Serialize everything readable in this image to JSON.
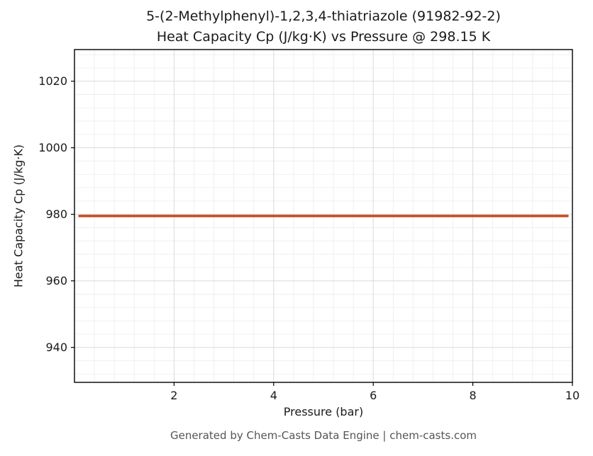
{
  "figure": {
    "title_line1": "5-(2-Methylphenyl)-1,2,3,4-thiatriazole (91982-92-2)",
    "title_line2": "Heat Capacity Cp (J/kg·K) vs Pressure @ 298.15 K",
    "footer": "Generated by Chem-Casts Data Engine | chem-casts.com"
  },
  "chart_data": {
    "type": "line",
    "title": "5-(2-Methylphenyl)-1,2,3,4-thiatriazole (91982-92-2)",
    "subtitle": "Heat Capacity Cp (J/kg·K) vs Pressure @ 298.15 K",
    "xlabel": "Pressure (bar)",
    "ylabel": "Heat Capacity Cp (J/kg·K)",
    "xlim": [
      0,
      10
    ],
    "ylim": [
      929.5,
      1029.5
    ],
    "xticks": [
      2,
      4,
      6,
      8,
      10
    ],
    "yticks": [
      940,
      960,
      980,
      1000,
      1020
    ],
    "x_minor_step": 0.4,
    "y_minor_step": 4,
    "grid": true,
    "legend_position": "none",
    "series": [
      {
        "name": "Heat Capacity Cp",
        "color": "#c9491d",
        "x": [
          0.1,
          1.0,
          2.0,
          3.0,
          4.0,
          5.0,
          6.0,
          7.0,
          8.0,
          9.0,
          9.9
        ],
        "y": [
          979.5,
          979.5,
          979.5,
          979.5,
          979.5,
          979.5,
          979.5,
          979.5,
          979.5,
          979.5,
          979.5
        ]
      }
    ]
  }
}
